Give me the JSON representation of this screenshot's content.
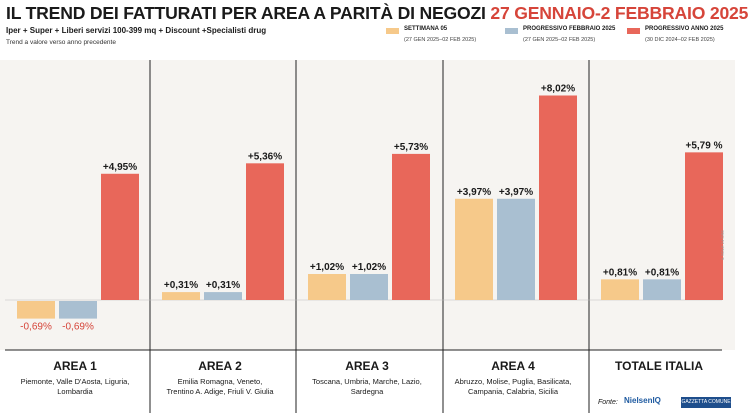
{
  "header": {
    "title_main": "IL TREND DEI FATTURATI PER AREA A PARITÀ DI NEGOZI",
    "title_period": "27 GENNAIO-2 FEBBRAIO 2025",
    "subtitle": "Iper + Super + Liberi servizi 100-399 mq + Discount +Specialisti drug",
    "note": "Trend a valore verso anno precedente"
  },
  "legend": [
    {
      "label": "SETTIMANA 05",
      "dates": "(27 GEN 2025–02 FEB 2025)",
      "color": "#f6c98a"
    },
    {
      "label": "PROGRESSIVO FEBBRAIO 2025",
      "dates": "(27 GEN 2025–02 FEB 2025)",
      "color": "#a9bfd1"
    },
    {
      "label": "PROGRESSIVO ANNO 2025",
      "dates": "(30 DIC 2024–02 FEB 2025)",
      "color": "#e8675a"
    }
  ],
  "areas": [
    {
      "name": "AREA 1",
      "regions": [
        "Piemonte, Valle D'Aosta, Liguria,",
        "Lombardia"
      ]
    },
    {
      "name": "AREA 2",
      "regions": [
        "Emilia Romagna, Veneto,",
        "Trentino A. Adige, Friuli V. Giulia"
      ]
    },
    {
      "name": "AREA 3",
      "regions": [
        "Toscana, Umbria, Marche, Lazio,",
        "Sardegna"
      ]
    },
    {
      "name": "AREA 4",
      "regions": [
        "Abruzzo, Molise, Puglia, Basilicata,",
        "Campania, Calabria, Sicilia"
      ]
    },
    {
      "name": "TOTALE ITALIA",
      "regions": []
    }
  ],
  "chart_data": {
    "type": "bar",
    "categories": [
      "AREA 1",
      "AREA 2",
      "AREA 3",
      "AREA 4",
      "TOTALE ITALIA"
    ],
    "series": [
      {
        "name": "SETTIMANA 05",
        "values": [
          -0.69,
          0.31,
          1.02,
          3.97,
          0.81
        ],
        "labels": [
          "-0,69%",
          "+0,31%",
          "+1,02%",
          "+3,97%",
          "+0,81%"
        ],
        "color": "#f6c98a"
      },
      {
        "name": "PROGRESSIVO FEBBRAIO 2025",
        "values": [
          -0.69,
          0.31,
          1.02,
          3.97,
          0.81
        ],
        "labels": [
          "-0,69%",
          "+0,31%",
          "+1,02%",
          "+3,97%",
          "+0,81%"
        ],
        "color": "#a9bfd1"
      },
      {
        "name": "PROGRESSIVO ANNO 2025",
        "values": [
          4.95,
          5.36,
          5.73,
          8.02,
          5.79
        ],
        "labels": [
          "+4,95%",
          "+5,36%",
          "+5,73%",
          "+8,02%",
          "+5,79 %"
        ],
        "color": "#e8675a"
      }
    ],
    "negative_label_color": "#d6453a",
    "ylim": [
      -1.2,
      8.6
    ]
  },
  "source": {
    "label": "Fonte:",
    "logo": "NielsenIQ",
    "logo2": "GAZZETTA COMUNE"
  },
  "credit": "IL SOLE 24 ORE"
}
